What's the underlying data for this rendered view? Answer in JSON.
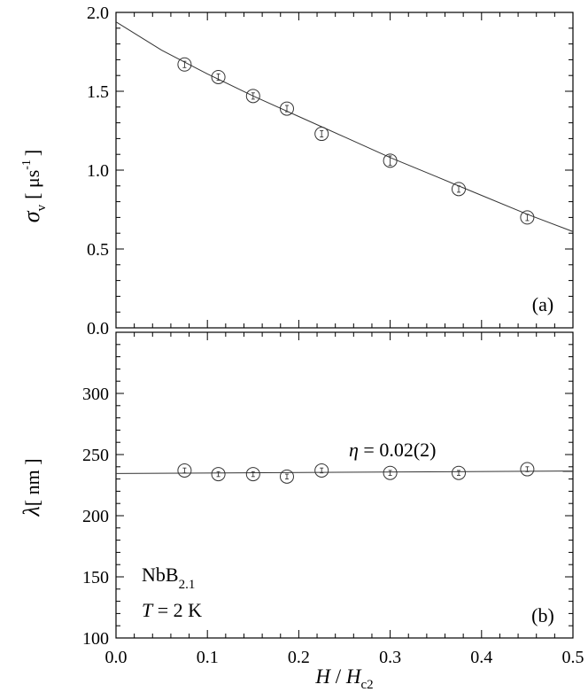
{
  "chart_data": [
    {
      "panel": "(a)",
      "type": "scatter",
      "ylabel": {
        "symbol": "σ",
        "subscript": "v",
        "unit_open": "[ μs",
        "unit_sup": "-1",
        "unit_close": "]"
      },
      "xlim": [
        0,
        0.5
      ],
      "ylim": [
        0,
        2.0
      ],
      "xticks": [
        "0.0",
        "0.1",
        "0.2",
        "0.3",
        "0.4",
        "0.5"
      ],
      "yticks": [
        "0.0",
        "0.5",
        "1.0",
        "1.5",
        "2.0"
      ],
      "points": [
        {
          "x": 0.075,
          "y": 1.67,
          "err": 0.02
        },
        {
          "x": 0.112,
          "y": 1.59,
          "err": 0.02
        },
        {
          "x": 0.15,
          "y": 1.47,
          "err": 0.02
        },
        {
          "x": 0.187,
          "y": 1.39,
          "err": 0.02
        },
        {
          "x": 0.225,
          "y": 1.23,
          "err": 0.02
        },
        {
          "x": 0.3,
          "y": 1.06,
          "err": 0.03
        },
        {
          "x": 0.375,
          "y": 0.88,
          "err": 0.02
        },
        {
          "x": 0.45,
          "y": 0.7,
          "err": 0.02
        }
      ],
      "fit": {
        "x": [
          0,
          0.05,
          0.1,
          0.15,
          0.2,
          0.25,
          0.3,
          0.35,
          0.4,
          0.45,
          0.5
        ],
        "y": [
          1.94,
          1.76,
          1.61,
          1.47,
          1.34,
          1.21,
          1.08,
          0.96,
          0.84,
          0.72,
          0.61
        ]
      }
    },
    {
      "panel": "(b)",
      "type": "scatter",
      "ylabel": {
        "symbol": "λ",
        "unit": "[ nm ]"
      },
      "xlabel": {
        "H": "H",
        "slash": " / ",
        "Hc": "H",
        "sub": "c2"
      },
      "xlim": [
        0,
        0.5
      ],
      "ylim": [
        100,
        350
      ],
      "xticks": [
        "0.0",
        "0.1",
        "0.2",
        "0.3",
        "0.4",
        "0.5"
      ],
      "yticks": [
        "100",
        "150",
        "200",
        "250",
        "300"
      ],
      "points": [
        {
          "x": 0.075,
          "y": 237,
          "err": 2
        },
        {
          "x": 0.112,
          "y": 234,
          "err": 2
        },
        {
          "x": 0.15,
          "y": 234,
          "err": 2
        },
        {
          "x": 0.187,
          "y": 232,
          "err": 2
        },
        {
          "x": 0.225,
          "y": 237,
          "err": 2
        },
        {
          "x": 0.3,
          "y": 235,
          "err": 2
        },
        {
          "x": 0.375,
          "y": 235,
          "err": 2
        },
        {
          "x": 0.45,
          "y": 238,
          "err": 2
        }
      ],
      "fit": {
        "x": [
          0,
          0.5
        ],
        "y": [
          234.5,
          236.5
        ]
      },
      "annotation": {
        "symbol": "η",
        "text": " = 0.02(2)"
      },
      "sample": {
        "name": "NbB",
        "sub": "2.1"
      },
      "temperature": {
        "T": "T",
        "text": " = 2 K"
      }
    }
  ]
}
